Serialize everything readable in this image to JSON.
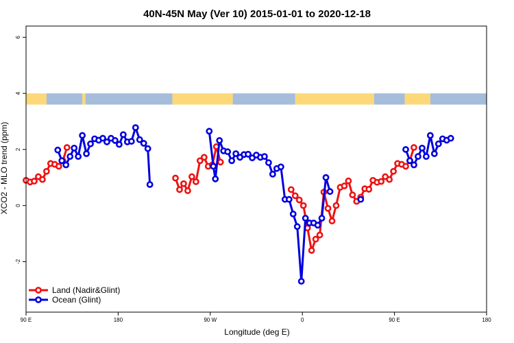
{
  "chart_data": {
    "type": "line",
    "title": "40N-45N May (Ver 10)   2015-01-01 to 2020-12-18",
    "xlabel": "Longitude (deg E)",
    "ylabel": "XCO2 - MLO trend (ppm)",
    "x_ticks": [
      {
        "value": 90,
        "label": "90 E"
      },
      {
        "value": 180,
        "label": "180"
      },
      {
        "value": 270,
        "label": "90 W"
      },
      {
        "value": 360,
        "label": "0"
      },
      {
        "value": 450,
        "label": "90 E"
      },
      {
        "value": 540,
        "label": "180"
      }
    ],
    "y_ticks": [
      {
        "value": -2,
        "label": "-2"
      },
      {
        "value": 0,
        "label": "0"
      },
      {
        "value": 2,
        "label": "2"
      },
      {
        "value": 4,
        "label": "4"
      },
      {
        "value": 6,
        "label": "6"
      }
    ],
    "xlim": [
      90,
      540
    ],
    "ylim": [
      -3.8,
      6.4
    ],
    "grid": false,
    "legend_position": "bottom-left",
    "land_ocean_strip": {
      "y_range": [
        3.6,
        4.0
      ],
      "land_color": "#fcd879",
      "ocean_color": "#a5bddb",
      "segments": [
        {
          "x0": 90,
          "x1": 110,
          "type": "land"
        },
        {
          "x0": 110,
          "x1": 145,
          "type": "ocean"
        },
        {
          "x0": 145,
          "x1": 148,
          "type": "land"
        },
        {
          "x0": 148,
          "x1": 233,
          "type": "ocean"
        },
        {
          "x0": 233,
          "x1": 292,
          "type": "land"
        },
        {
          "x0": 292,
          "x1": 353,
          "type": "ocean"
        },
        {
          "x0": 353,
          "x1": 430,
          "type": "land"
        },
        {
          "x0": 430,
          "x1": 460,
          "type": "ocean"
        },
        {
          "x0": 460,
          "x1": 485,
          "type": "land"
        },
        {
          "x0": 485,
          "x1": 540,
          "type": "ocean"
        }
      ]
    },
    "series": [
      {
        "name": "Land (Nadir&Glint)",
        "color": "#ee1111",
        "segments": [
          [
            [
              90,
              0.9
            ],
            [
              94,
              0.84
            ],
            [
              98,
              0.87
            ],
            [
              102,
              1.03
            ],
            [
              106,
              0.93
            ],
            [
              110,
              1.22
            ],
            [
              114,
              1.5
            ],
            [
              118,
              1.47
            ],
            [
              122,
              1.4
            ],
            [
              126,
              1.6
            ],
            [
              130,
              2.07
            ]
          ],
          [
            [
              236,
              0.98
            ],
            [
              240,
              0.57
            ],
            [
              244,
              0.78
            ],
            [
              248,
              0.53
            ],
            [
              252,
              1.03
            ],
            [
              256,
              0.85
            ],
            [
              260,
              1.6
            ],
            [
              264,
              1.72
            ],
            [
              268,
              1.4
            ],
            [
              272,
              1.45
            ],
            [
              276,
              2.1
            ],
            [
              280,
              1.55
            ]
          ],
          [
            [
              349,
              0.57
            ],
            [
              353,
              0.35
            ],
            [
              357,
              0.2
            ],
            [
              361,
              0.0
            ],
            [
              365,
              -0.8
            ],
            [
              369,
              -1.6
            ],
            [
              373,
              -1.2
            ],
            [
              377,
              -1.05
            ],
            [
              381,
              0.48
            ],
            [
              385,
              -0.1
            ],
            [
              389,
              -0.55
            ],
            [
              393,
              0.0
            ],
            [
              397,
              0.65
            ],
            [
              401,
              0.7
            ],
            [
              405,
              0.88
            ],
            [
              409,
              0.38
            ],
            [
              413,
              0.15
            ],
            [
              417,
              0.3
            ],
            [
              421,
              0.6
            ],
            [
              425,
              0.58
            ],
            [
              429,
              0.9
            ],
            [
              433,
              0.83
            ],
            [
              437,
              0.86
            ],
            [
              441,
              1.03
            ],
            [
              445,
              0.93
            ],
            [
              449,
              1.22
            ],
            [
              453,
              1.5
            ],
            [
              457,
              1.47
            ],
            [
              461,
              1.4
            ],
            [
              465,
              1.6
            ],
            [
              469,
              2.07
            ]
          ]
        ]
      },
      {
        "name": "Ocean (Glint)",
        "color": "#0000dd",
        "segments": [
          [
            [
              121,
              1.98
            ],
            [
              125,
              1.6
            ],
            [
              129,
              1.45
            ],
            [
              133,
              1.75
            ],
            [
              137,
              2.05
            ],
            [
              141,
              1.75
            ],
            [
              145,
              2.5
            ],
            [
              149,
              1.85
            ],
            [
              153,
              2.2
            ],
            [
              157,
              2.38
            ],
            [
              161,
              2.33
            ],
            [
              165,
              2.4
            ],
            [
              169,
              2.27
            ],
            [
              173,
              2.4
            ],
            [
              177,
              2.32
            ],
            [
              181,
              2.18
            ],
            [
              185,
              2.53
            ],
            [
              189,
              2.27
            ],
            [
              193,
              2.29
            ],
            [
              197,
              2.78
            ],
            [
              201,
              2.35
            ],
            [
              205,
              2.22
            ],
            [
              209,
              2.03
            ],
            [
              211,
              0.75
            ]
          ],
          [
            [
              269,
              2.65
            ],
            [
              273,
              1.4
            ],
            [
              275,
              0.95
            ],
            [
              279,
              2.32
            ],
            [
              283,
              1.95
            ],
            [
              287,
              1.92
            ],
            [
              291,
              1.6
            ],
            [
              295,
              1.85
            ],
            [
              299,
              1.72
            ],
            [
              303,
              1.82
            ],
            [
              307,
              1.83
            ],
            [
              311,
              1.7
            ],
            [
              315,
              1.8
            ],
            [
              319,
              1.72
            ],
            [
              323,
              1.75
            ],
            [
              327,
              1.53
            ],
            [
              331,
              1.12
            ],
            [
              335,
              1.32
            ],
            [
              339,
              1.38
            ],
            [
              343,
              0.22
            ],
            [
              347,
              0.22
            ],
            [
              351,
              -0.3
            ],
            [
              355,
              -0.75
            ],
            [
              359,
              -2.7
            ],
            [
              363,
              -0.45
            ],
            [
              367,
              -0.62
            ],
            [
              371,
              -0.62
            ],
            [
              375,
              -0.7
            ],
            [
              379,
              -0.45
            ],
            [
              383,
              1.0
            ],
            [
              387,
              0.5
            ]
          ],
          [
            [
              417,
              0.22
            ]
          ],
          [
            [
              461,
              2.0
            ],
            [
              465,
              1.6
            ],
            [
              469,
              1.45
            ],
            [
              473,
              1.75
            ],
            [
              477,
              2.05
            ],
            [
              481,
              1.75
            ],
            [
              485,
              2.5
            ],
            [
              489,
              1.85
            ],
            [
              493,
              2.2
            ],
            [
              497,
              2.38
            ],
            [
              501,
              2.33
            ],
            [
              505,
              2.4
            ]
          ]
        ]
      }
    ]
  }
}
